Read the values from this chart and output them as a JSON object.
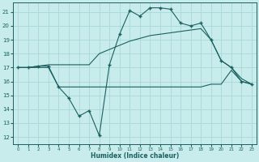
{
  "xlabel": "Humidex (Indice chaleur)",
  "background_color": "#c8ecec",
  "grid_color": "#a8d8d8",
  "line_color": "#1a6060",
  "xlim": [
    -0.5,
    23.5
  ],
  "ylim": [
    11.5,
    21.7
  ],
  "xticks": [
    0,
    1,
    2,
    3,
    4,
    5,
    6,
    7,
    8,
    9,
    10,
    11,
    12,
    13,
    14,
    15,
    16,
    17,
    18,
    19,
    20,
    21,
    22,
    23
  ],
  "yticks": [
    12,
    13,
    14,
    15,
    16,
    17,
    18,
    19,
    20,
    21
  ],
  "line1_x": [
    0,
    1,
    2,
    3,
    4,
    5,
    6,
    7,
    8,
    9,
    10,
    11,
    12,
    13,
    14,
    15,
    16,
    17,
    18,
    19,
    20,
    21,
    22,
    23
  ],
  "line1_y": [
    17.0,
    17.0,
    17.1,
    17.1,
    15.6,
    14.8,
    13.5,
    13.9,
    12.1,
    17.2,
    19.4,
    21.1,
    20.7,
    21.3,
    21.3,
    21.2,
    20.2,
    20.0,
    20.2,
    19.0,
    17.5,
    17.0,
    16.0,
    15.8
  ],
  "line2_x": [
    0,
    1,
    2,
    3,
    4,
    5,
    6,
    7,
    8,
    9,
    10,
    11,
    12,
    13,
    14,
    15,
    16,
    17,
    18,
    19,
    20,
    21,
    22,
    23
  ],
  "line2_y": [
    17.0,
    17.0,
    17.1,
    17.2,
    17.2,
    17.2,
    17.2,
    17.2,
    18.0,
    18.3,
    18.6,
    18.9,
    19.1,
    19.3,
    19.4,
    19.5,
    19.6,
    19.7,
    19.8,
    19.0,
    17.5,
    17.0,
    16.2,
    15.8
  ],
  "line3_x": [
    0,
    1,
    2,
    3,
    4,
    5,
    6,
    7,
    8,
    9,
    10,
    11,
    12,
    13,
    14,
    15,
    16,
    17,
    18,
    19,
    20,
    21,
    22,
    23
  ],
  "line3_y": [
    17.0,
    17.0,
    17.0,
    17.0,
    15.6,
    15.6,
    15.6,
    15.6,
    15.6,
    15.6,
    15.6,
    15.6,
    15.6,
    15.6,
    15.6,
    15.6,
    15.6,
    15.6,
    15.6,
    15.8,
    15.8,
    16.8,
    16.0,
    15.8
  ]
}
